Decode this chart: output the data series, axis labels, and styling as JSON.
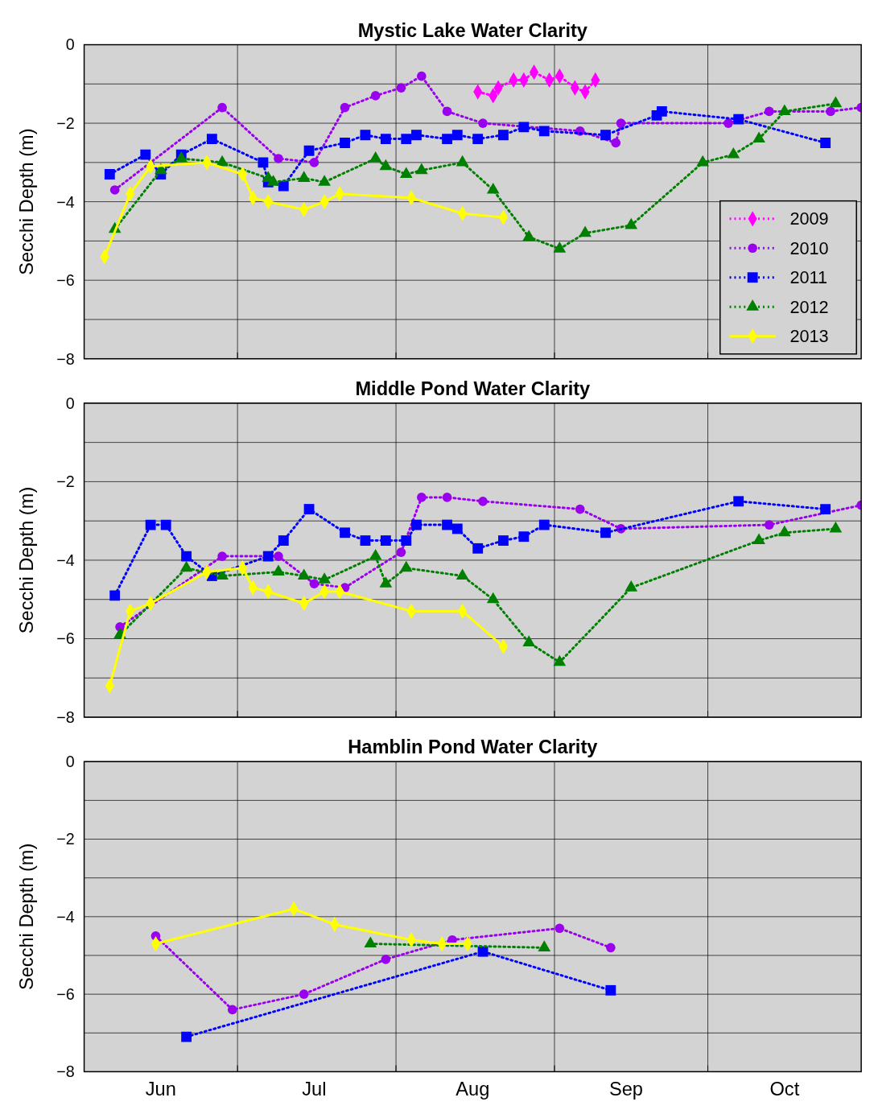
{
  "chart_data": [
    {
      "type": "line",
      "title": "Mystic Lake Water Clarity",
      "ylabel": "Secchi Depth (m)",
      "xlim": [
        "--06-01",
        "--10-31"
      ],
      "ylim": [
        -8,
        0
      ],
      "xticks": [
        {
          "value": "--07-01",
          "label": null
        },
        {
          "value": "--08-01",
          "label": null
        },
        {
          "value": "--09-01",
          "label": null
        },
        {
          "value": "--10-01",
          "label": null
        }
      ],
      "yticks": [
        {
          "value": 0,
          "label": "0"
        },
        {
          "value": -1,
          "label": null
        },
        {
          "value": -2,
          "label": "−2"
        },
        {
          "value": -3,
          "label": null
        },
        {
          "value": -4,
          "label": "−4"
        },
        {
          "value": -5,
          "label": null
        },
        {
          "value": -6,
          "label": "−6"
        },
        {
          "value": -7,
          "label": null
        },
        {
          "value": -8,
          "label": "−8"
        }
      ],
      "grid": true,
      "legend": "bottom right",
      "tick_labels": "y",
      "series": [
        {
          "name": "2009",
          "color": "#ff00ff",
          "marker": "diamond",
          "line_style": "dotted",
          "x": [
            "--08-17",
            "--08-20",
            "--08-21",
            "--08-24",
            "--08-26",
            "--08-28",
            "--08-31",
            "--09-02",
            "--09-05",
            "--09-07",
            "--09-09"
          ],
          "values": [
            -1.2,
            -1.3,
            -1.1,
            -0.9,
            -0.9,
            -0.7,
            -0.9,
            -0.8,
            -1.1,
            -1.2,
            -0.9
          ]
        },
        {
          "name": "2010",
          "color": "#9900ee",
          "marker": "circle",
          "line_style": "dotted",
          "x": [
            "--06-07",
            "--06-28",
            "--07-09",
            "--07-16",
            "--07-22",
            "--07-28",
            "--08-02",
            "--08-06",
            "--08-11",
            "--08-18",
            "--09-06",
            "--09-13",
            "--09-14",
            "--10-05",
            "--10-13",
            "--10-25",
            "--10-31"
          ],
          "values": [
            -3.7,
            -1.6,
            -2.9,
            -3.0,
            -1.6,
            -1.3,
            -1.1,
            -0.8,
            -1.7,
            -2.0,
            -2.2,
            -2.5,
            -2.0,
            -2.0,
            -1.7,
            -1.7,
            -1.6
          ]
        },
        {
          "name": "2011",
          "color": "#0000ff",
          "marker": "square",
          "line_style": "dotted",
          "x": [
            "--06-06",
            "--06-13",
            "--06-16",
            "--06-20",
            "--06-26",
            "--07-06",
            "--07-07",
            "--07-10",
            "--07-15",
            "--07-22",
            "--07-26",
            "--07-30",
            "--08-03",
            "--08-05",
            "--08-11",
            "--08-13",
            "--08-17",
            "--08-22",
            "--08-26",
            "--08-30",
            "--09-11",
            "--09-21",
            "--09-22",
            "--10-07",
            "--10-24"
          ],
          "values": [
            -3.3,
            -2.8,
            -3.3,
            -2.8,
            -2.4,
            -3.0,
            -3.5,
            -3.6,
            -2.7,
            -2.5,
            -2.3,
            -2.4,
            -2.4,
            -2.3,
            -2.4,
            -2.3,
            -2.4,
            -2.3,
            -2.1,
            -2.2,
            -2.3,
            -1.8,
            -1.7,
            -1.9,
            -2.5
          ]
        },
        {
          "name": "2012",
          "color": "#008000",
          "marker": "triangle",
          "line_style": "dotted",
          "x": [
            "--06-07",
            "--06-16",
            "--06-20",
            "--06-28",
            "--07-07",
            "--07-08",
            "--07-14",
            "--07-18",
            "--07-28",
            "--07-30",
            "--08-03",
            "--08-06",
            "--08-14",
            "--08-20",
            "--08-27",
            "--09-02",
            "--09-07",
            "--09-16",
            "--09-30",
            "--10-06",
            "--10-11",
            "--10-16",
            "--10-26"
          ],
          "values": [
            -4.7,
            -3.2,
            -2.9,
            -3.0,
            -3.4,
            -3.5,
            -3.4,
            -3.5,
            -2.9,
            -3.1,
            -3.3,
            -3.2,
            -3.0,
            -3.7,
            -4.9,
            -5.2,
            -4.8,
            -4.6,
            -3.0,
            -2.8,
            -2.4,
            -1.7,
            -1.5
          ]
        },
        {
          "name": "2013",
          "color": "#ffff00",
          "marker": "diamond",
          "line_style": "solid",
          "x": [
            "--06-05",
            "--06-10",
            "--06-14",
            "--06-25",
            "--07-02",
            "--07-04",
            "--07-07",
            "--07-14",
            "--07-18",
            "--07-21",
            "--08-04",
            "--08-14",
            "--08-22"
          ],
          "values": [
            -5.4,
            -3.8,
            -3.1,
            -3.0,
            -3.3,
            -3.9,
            -4.0,
            -4.2,
            -4.0,
            -3.8,
            -3.9,
            -4.3,
            -4.4
          ]
        }
      ]
    },
    {
      "type": "line",
      "title": "Middle Pond Water Clarity",
      "ylabel": "Secchi Depth (m)",
      "xlim": [
        "--06-01",
        "--10-31"
      ],
      "ylim": [
        -8,
        0
      ],
      "xticks": [
        {
          "value": "--07-01",
          "label": null
        },
        {
          "value": "--08-01",
          "label": null
        },
        {
          "value": "--09-01",
          "label": null
        },
        {
          "value": "--10-01",
          "label": null
        }
      ],
      "yticks": [
        {
          "value": 0,
          "label": "0"
        },
        {
          "value": -1,
          "label": null
        },
        {
          "value": -2,
          "label": "−2"
        },
        {
          "value": -3,
          "label": null
        },
        {
          "value": -4,
          "label": "−4"
        },
        {
          "value": -5,
          "label": null
        },
        {
          "value": -6,
          "label": "−6"
        },
        {
          "value": -7,
          "label": null
        },
        {
          "value": -8,
          "label": "−8"
        }
      ],
      "grid": true,
      "tick_labels": "y",
      "series": [
        {
          "color": "#9900ee",
          "marker": "circle",
          "line_style": "dotted",
          "x": [
            "--06-08",
            "--06-28",
            "--07-09",
            "--07-16",
            "--07-22",
            "--08-02",
            "--08-06",
            "--08-11",
            "--08-18",
            "--09-06",
            "--09-14",
            "--10-13",
            "--10-31"
          ],
          "values": [
            -5.7,
            -3.9,
            -3.9,
            -4.6,
            -4.7,
            -3.8,
            -2.4,
            -2.4,
            -2.5,
            -2.7,
            -3.2,
            -3.1,
            -2.6
          ]
        },
        {
          "color": "#0000ff",
          "marker": "square",
          "line_style": "dotted",
          "x": [
            "--06-07",
            "--06-14",
            "--06-17",
            "--06-21",
            "--06-26",
            "--07-07",
            "--07-10",
            "--07-15",
            "--07-22",
            "--07-26",
            "--07-30",
            "--08-03",
            "--08-05",
            "--08-11",
            "--08-13",
            "--08-17",
            "--08-22",
            "--08-26",
            "--08-30",
            "--09-11",
            "--10-07",
            "--10-24"
          ],
          "values": [
            -4.9,
            -3.1,
            -3.1,
            -3.9,
            -4.4,
            -3.9,
            -3.5,
            -2.7,
            -3.3,
            -3.5,
            -3.5,
            -3.5,
            -3.1,
            -3.1,
            -3.2,
            -3.7,
            -3.5,
            -3.4,
            -3.1,
            -3.3,
            -2.5,
            -2.7
          ]
        },
        {
          "color": "#008000",
          "marker": "triangle",
          "line_style": "dotted",
          "x": [
            "--06-08",
            "--06-21",
            "--06-28",
            "--07-09",
            "--07-14",
            "--07-18",
            "--07-28",
            "--07-30",
            "--08-03",
            "--08-14",
            "--08-20",
            "--08-27",
            "--09-02",
            "--09-16",
            "--10-11",
            "--10-16",
            "--10-26"
          ],
          "values": [
            -5.9,
            -4.2,
            -4.4,
            -4.3,
            -4.4,
            -4.5,
            -3.9,
            -4.6,
            -4.2,
            -4.4,
            -5.0,
            -6.1,
            -6.6,
            -4.7,
            -3.5,
            -3.3,
            -3.2
          ]
        },
        {
          "color": "#ffff00",
          "marker": "diamond",
          "line_style": "solid",
          "x": [
            "--06-06",
            "--06-10",
            "--06-14",
            "--06-25",
            "--07-02",
            "--07-04",
            "--07-07",
            "--07-14",
            "--07-18",
            "--07-21",
            "--08-04",
            "--08-14",
            "--08-22"
          ],
          "values": [
            -7.2,
            -5.3,
            -5.1,
            -4.3,
            -4.2,
            -4.7,
            -4.8,
            -5.1,
            -4.8,
            -4.8,
            -5.3,
            -5.3,
            -6.2
          ]
        }
      ]
    },
    {
      "type": "line",
      "title": "Hamblin Pond Water Clarity",
      "ylabel": "Secchi Depth (m)",
      "xlim": [
        "--06-01",
        "--10-31"
      ],
      "ylim": [
        -8,
        0
      ],
      "xticks": [
        {
          "value": "--07-01",
          "label": null
        },
        {
          "value": "--08-01",
          "label": null
        },
        {
          "value": "--09-01",
          "label": null
        },
        {
          "value": "--10-01",
          "label": null
        },
        {
          "value": "--06-16",
          "label": "Jun"
        },
        {
          "value": "--07-16",
          "label": "Jul"
        },
        {
          "value": "--08-16",
          "label": "Aug"
        },
        {
          "value": "--09-15",
          "label": "Sep"
        },
        {
          "value": "--10-16",
          "label": "Oct"
        }
      ],
      "yticks": [
        {
          "value": 0,
          "label": "0"
        },
        {
          "value": -1,
          "label": null
        },
        {
          "value": -2,
          "label": "−2"
        },
        {
          "value": -3,
          "label": null
        },
        {
          "value": -4,
          "label": "−4"
        },
        {
          "value": -5,
          "label": null
        },
        {
          "value": -6,
          "label": "−6"
        },
        {
          "value": -7,
          "label": null
        },
        {
          "value": -8,
          "label": "−8"
        }
      ],
      "grid": true,
      "series": [
        {
          "color": "#9900ee",
          "marker": "circle",
          "line_style": "dotted",
          "x": [
            "--06-15",
            "--06-30",
            "--07-14",
            "--07-30",
            "--08-12",
            "--09-02",
            "--09-12"
          ],
          "values": [
            -4.5,
            -6.4,
            -6.0,
            -5.1,
            -4.6,
            -4.3,
            -4.8
          ]
        },
        {
          "color": "#0000ff",
          "marker": "square",
          "line_style": "dotted",
          "x": [
            "--06-21",
            "--08-18",
            "--09-12"
          ],
          "values": [
            -7.1,
            -4.9,
            -5.9
          ]
        },
        {
          "color": "#008000",
          "marker": "triangle",
          "line_style": "dotted",
          "x": [
            "--07-27",
            "--08-30"
          ],
          "values": [
            -4.7,
            -4.8
          ]
        },
        {
          "color": "#ffff00",
          "marker": "diamond",
          "line_style": "solid",
          "x": [
            "--06-15",
            "--07-12",
            "--07-20",
            "--08-04",
            "--08-10",
            "--08-15"
          ],
          "values": [
            -4.7,
            -3.8,
            -4.2,
            -4.6,
            -4.7,
            -4.7
          ]
        }
      ]
    }
  ]
}
